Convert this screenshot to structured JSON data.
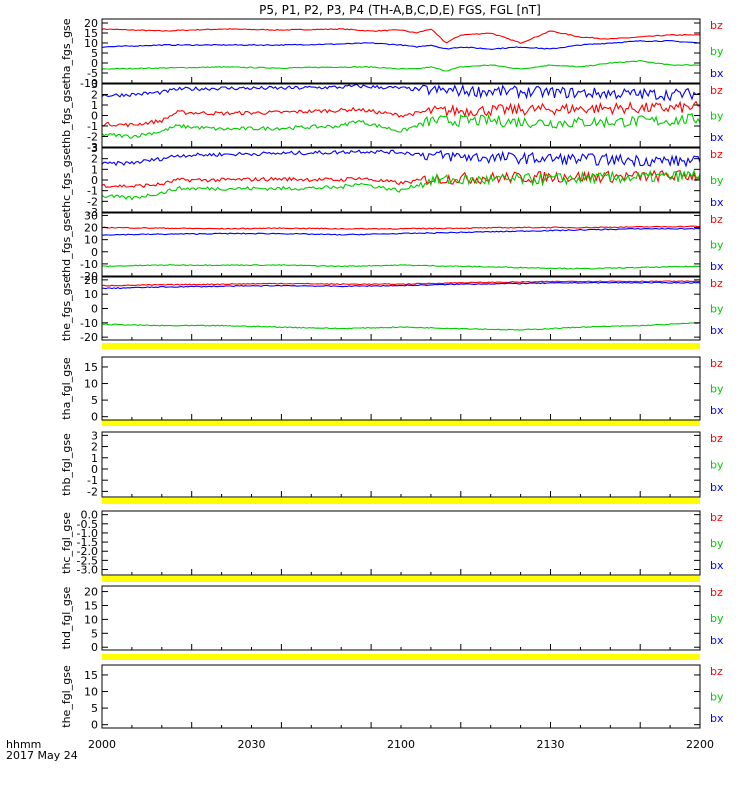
{
  "title": "P5, P1, P2, P3, P4 (TH-A,B,C,D,E) FGS, FGL [nT]",
  "footer": {
    "time_label": "hhmm",
    "date_label": "2017 May 24"
  },
  "colors": {
    "bz": "#ff0000",
    "by": "#00cc00",
    "bx": "#0000ff",
    "flag": "#ffff00",
    "frame": "#000000"
  },
  "chart_data": {
    "type": "line",
    "x_axis": {
      "range": [
        "2000",
        "2200"
      ],
      "ticks": [
        "2000",
        "2030",
        "2100",
        "2130",
        "2200"
      ]
    },
    "legend": [
      "bz",
      "by",
      "bx"
    ],
    "panels": [
      {
        "ylabel": "tha_fgs_gse",
        "ylim": [
          -10,
          22
        ],
        "yticks": [
          "20",
          "15",
          "10",
          "5",
          "0",
          "-5",
          "-10"
        ],
        "ytick_values": [
          20,
          15,
          10,
          5,
          0,
          -5,
          -10
        ],
        "series": [
          {
            "name": "bz",
            "x": [
              0,
              20,
              40,
              60,
              80,
              90,
              100,
              105,
              110,
              115,
              120,
              130,
              140,
              150,
              160,
              170,
              180,
              190,
              200
            ],
            "values": [
              17,
              16,
              17,
              16.5,
              17,
              16,
              16.5,
              15,
              17,
              10,
              14,
              15,
              10,
              16,
              13,
              12,
              13,
              14,
              14
            ]
          },
          {
            "name": "by",
            "x": [
              0,
              20,
              40,
              60,
              80,
              90,
              100,
              105,
              110,
              115,
              120,
              130,
              140,
              150,
              160,
              170,
              180,
              190,
              200
            ],
            "values": [
              -3,
              -2.5,
              -2,
              -2.5,
              -2,
              -2,
              -3,
              -3,
              -2,
              -4,
              -2,
              -1,
              -3,
              -1,
              -2,
              0,
              1,
              -1,
              -1
            ]
          },
          {
            "name": "bx",
            "x": [
              0,
              20,
              40,
              60,
              80,
              90,
              100,
              105,
              110,
              115,
              120,
              130,
              140,
              150,
              160,
              170,
              180,
              190,
              200
            ],
            "values": [
              8,
              9,
              9,
              9,
              9.5,
              10,
              9,
              8,
              9,
              7,
              8,
              7,
              8,
              7,
              9,
              10,
              11,
              11,
              10
            ]
          }
        ]
      },
      {
        "ylabel": "thb_fgs_gse",
        "ylim": [
          -3,
          3
        ],
        "yticks": [
          "3",
          "2",
          "1",
          "0",
          "-1",
          "-2",
          "-3"
        ],
        "ytick_values": [
          3,
          2,
          1,
          0,
          -1,
          -2,
          -3
        ],
        "series": [
          {
            "name": "bz",
            "x": [
              0,
              10,
              20,
              25,
              40,
              60,
              80,
              85,
              100,
              110,
              130,
              150,
              170,
              190,
              200
            ],
            "values": [
              -0.8,
              -0.9,
              -0.5,
              0.3,
              0.2,
              0.3,
              0.5,
              0.6,
              0.0,
              0.4,
              0.5,
              0.6,
              0.7,
              0.7,
              0.8
            ]
          },
          {
            "name": "by",
            "x": [
              0,
              10,
              20,
              25,
              40,
              60,
              80,
              85,
              100,
              110,
              130,
              150,
              170,
              190,
              200
            ],
            "values": [
              -1.8,
              -2.0,
              -1.5,
              -1.0,
              -1.3,
              -1.2,
              -1.0,
              -0.5,
              -1.5,
              -0.5,
              -0.5,
              -0.7,
              -0.6,
              -0.5,
              -0.3
            ]
          },
          {
            "name": "bx",
            "x": [
              0,
              10,
              20,
              25,
              40,
              60,
              80,
              85,
              100,
              110,
              130,
              150,
              170,
              190,
              200
            ],
            "values": [
              1.9,
              2.0,
              2.2,
              2.5,
              2.6,
              2.6,
              2.7,
              2.8,
              2.6,
              2.4,
              2.3,
              2.2,
              2.1,
              2.0,
              2.1
            ]
          }
        ]
      },
      {
        "ylabel": "thc_fgs_gse",
        "ylim": [
          -3,
          3
        ],
        "yticks": [
          "3",
          "2",
          "1",
          "0",
          "-1",
          "-2",
          "-3"
        ],
        "ytick_values": [
          3,
          2,
          1,
          0,
          -1,
          -2,
          -3
        ],
        "series": [
          {
            "name": "bz",
            "x": [
              0,
              10,
              20,
              25,
              40,
              60,
              80,
              85,
              100,
              110,
              130,
              150,
              170,
              190,
              200
            ],
            "values": [
              -0.5,
              -0.6,
              -0.4,
              0.0,
              0.0,
              0.1,
              0.0,
              0.2,
              -0.3,
              0.1,
              0.2,
              0.3,
              0.3,
              0.4,
              0.4
            ]
          },
          {
            "name": "by",
            "x": [
              0,
              10,
              20,
              25,
              40,
              60,
              80,
              85,
              100,
              110,
              130,
              150,
              170,
              190,
              200
            ],
            "values": [
              -1.5,
              -1.7,
              -1.2,
              -0.8,
              -0.8,
              -0.8,
              -0.7,
              -0.3,
              -1.0,
              0.0,
              0.0,
              0.1,
              0.2,
              0.3,
              0.5
            ]
          },
          {
            "name": "bx",
            "x": [
              0,
              10,
              20,
              25,
              40,
              60,
              80,
              85,
              100,
              110,
              130,
              150,
              170,
              190,
              200
            ],
            "values": [
              1.5,
              1.6,
              2.0,
              2.3,
              2.4,
              2.5,
              2.6,
              2.7,
              2.6,
              2.3,
              2.1,
              2.0,
              1.9,
              1.8,
              1.7
            ]
          }
        ]
      },
      {
        "ylabel": "thd_fgs_gse",
        "ylim": [
          -20,
          32
        ],
        "yticks": [
          "30",
          "20",
          "10",
          "0",
          "-10",
          "-20"
        ],
        "ytick_values": [
          30,
          20,
          10,
          0,
          -10,
          -20
        ],
        "series": [
          {
            "name": "bz",
            "x": [
              0,
              20,
              40,
              60,
              80,
              100,
              120,
              140,
              160,
              180,
              200
            ],
            "values": [
              20,
              19.5,
              19,
              19.5,
              19,
              19,
              19.5,
              20,
              20,
              20.5,
              21
            ]
          },
          {
            "name": "by",
            "x": [
              0,
              20,
              40,
              60,
              80,
              100,
              120,
              140,
              160,
              180,
              200
            ],
            "values": [
              -12,
              -11,
              -11,
              -11,
              -12,
              -11,
              -12,
              -13,
              -14,
              -13,
              -12
            ]
          },
          {
            "name": "bx",
            "x": [
              0,
              20,
              40,
              60,
              80,
              100,
              120,
              140,
              160,
              180,
              200
            ],
            "values": [
              14,
              14.5,
              15,
              15,
              14,
              15,
              16,
              17,
              18,
              19,
              19
            ]
          }
        ]
      },
      {
        "ylabel": "the_fgs_gse",
        "ylim": [
          -22,
          22
        ],
        "yticks": [
          "20",
          "10",
          "0",
          "-10",
          "-20"
        ],
        "ytick_values": [
          20,
          10,
          0,
          -10,
          -20
        ],
        "series": [
          {
            "name": "bz",
            "x": [
              0,
              20,
              40,
              60,
              80,
              100,
              120,
              140,
              160,
              180,
              200
            ],
            "values": [
              16,
              16.5,
              17,
              17.5,
              17,
              17,
              18,
              18.5,
              19,
              19,
              19
            ]
          },
          {
            "name": "by",
            "x": [
              0,
              20,
              40,
              60,
              80,
              100,
              120,
              140,
              160,
              180,
              200
            ],
            "values": [
              -11,
              -12,
              -12,
              -13,
              -14,
              -13,
              -14,
              -15,
              -13,
              -12,
              -10
            ]
          },
          {
            "name": "bx",
            "x": [
              0,
              20,
              40,
              60,
              80,
              100,
              120,
              140,
              160,
              180,
              200
            ],
            "values": [
              14,
              15,
              15.5,
              16,
              15.5,
              16,
              17,
              17.5,
              18,
              18,
              18
            ]
          }
        ]
      },
      {
        "ylabel": "tha_fgl_gse",
        "ylim": [
          -1,
          18
        ],
        "yticks": [
          "15",
          "10",
          "5",
          "0"
        ],
        "ytick_values": [
          15,
          10,
          5,
          0
        ],
        "series": []
      },
      {
        "ylabel": "thb_fgl_gse",
        "ylim": [
          -2.5,
          3.3
        ],
        "yticks": [
          "3",
          "2",
          "1",
          "0",
          "-1",
          "-2"
        ],
        "ytick_values": [
          3,
          2,
          1,
          0,
          -1,
          -2
        ],
        "series": []
      },
      {
        "ylabel": "thc_fgl_gse",
        "ylim": [
          -3.3,
          0.2
        ],
        "yticks": [
          "0.0",
          "-0.5",
          "-1.0",
          "-1.5",
          "-2.0",
          "-2.5",
          "-3.0"
        ],
        "ytick_values": [
          0,
          -0.5,
          -1,
          -1.5,
          -2,
          -2.5,
          -3
        ],
        "series": []
      },
      {
        "ylabel": "thd_fgl_gse",
        "ylim": [
          -1,
          22
        ],
        "yticks": [
          "20",
          "15",
          "10",
          "5",
          "0"
        ],
        "ytick_values": [
          20,
          15,
          10,
          5,
          0
        ],
        "series": []
      },
      {
        "ylabel": "the_fgl_gse",
        "ylim": [
          -1,
          18
        ],
        "yticks": [
          "15",
          "10",
          "5",
          "0"
        ],
        "ytick_values": [
          15,
          10,
          5,
          0
        ],
        "series": []
      }
    ]
  }
}
